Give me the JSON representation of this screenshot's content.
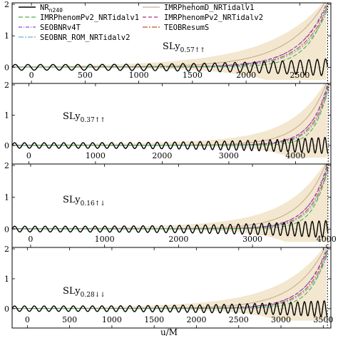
{
  "colors": {
    "NR": "#000000",
    "IMRPhenomPv2_NRTidalv1": "#4daf4a",
    "SEOBNRv4T": "#7b4fd6",
    "SEOBNR_ROM_NRTidalv2": "#6aaed6",
    "IMRPhenomD_NRTidalv1": "#c9ad8e",
    "IMRPhenomPv2_NRTidalv2": "#a2307f",
    "TEOBResumS": "#c0532b",
    "band": "#f3e7cf"
  },
  "legend": {
    "nr_base": "NR",
    "nr_sub": "n240",
    "entries": [
      {
        "key": "IMRPhenomPv2_NRTidalv1",
        "label": "IMRPhenomPv2_NRTidalv1",
        "dash": "6,3"
      },
      {
        "key": "SEOBNRv4T",
        "label": "SEOBNRv4T",
        "dash": "5,2,1,2"
      },
      {
        "key": "SEOBNR_ROM_NRTidalv2",
        "label": "SEOBNR_ROM_NRTidalv2",
        "dash": "7,2,2,2"
      },
      {
        "key": "IMRPhenomD_NRTidalv1",
        "label": "IMRPhenomD_NRTidalv1",
        "dash": ""
      },
      {
        "key": "IMRPhenomPv2_NRTidalv2",
        "label": "IMRPhenomPv2_NRTidalv2",
        "dash": "5,3"
      },
      {
        "key": "TEOBResumS",
        "label": "TEOBResumS",
        "dash": "7,2,2,2"
      }
    ]
  },
  "chart_data": [
    {
      "type": "line",
      "annotation": {
        "base": "SLy",
        "sub": "0.57↑↑"
      },
      "xlim": [
        -180,
        2790
      ],
      "ylim": [
        -0.4,
        2
      ],
      "xticks": [
        0,
        500,
        1000,
        1500,
        2000,
        2500
      ],
      "yticks": [
        0,
        1,
        2
      ],
      "merger": 2760,
      "nr_cycles": 25
    },
    {
      "type": "line",
      "annotation": {
        "base": "SLy",
        "sub": "0.37↑↑"
      },
      "xlim": [
        -250,
        4530
      ],
      "ylim": [
        -0.4,
        2
      ],
      "xticks": [
        0,
        1000,
        2000,
        3000,
        4000
      ],
      "yticks": [
        0,
        1,
        2
      ],
      "merger": 4490,
      "nr_cycles": 32
    },
    {
      "type": "line",
      "annotation": {
        "base": "SLy",
        "sub": "0.16↑↓"
      },
      "xlim": [
        -250,
        4060
      ],
      "ylim": [
        -0.4,
        2
      ],
      "xticks": [
        0,
        1000,
        2000,
        3000,
        4000
      ],
      "yticks": [
        0,
        1,
        2
      ],
      "merger": 4020,
      "nr_cycles": 31
    },
    {
      "type": "line",
      "annotation": {
        "base": "SLy",
        "sub": "0.28↓↓"
      },
      "xlim": [
        -180,
        3590
      ],
      "ylim": [
        -0.4,
        2
      ],
      "xticks": [
        0,
        500,
        1000,
        1500,
        2000,
        2500,
        3000,
        3500
      ],
      "yticks": [
        0,
        1,
        2
      ],
      "merger": 3550,
      "nr_cycles": 32
    }
  ],
  "xlabel": "u/M"
}
